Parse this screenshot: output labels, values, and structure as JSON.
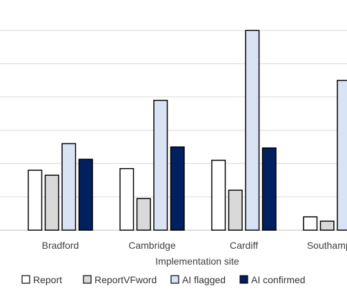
{
  "chart_data": {
    "type": "bar",
    "xlabel": "Implementation site",
    "ylabel": "",
    "categories": [
      "Bradford",
      "Cambridge",
      "Cardiff",
      "Southampton"
    ],
    "series": [
      {
        "name": "Report",
        "values": [
          18,
          18.5,
          21,
          4
        ],
        "color": "#ffffff"
      },
      {
        "name": "ReportVFword",
        "values": [
          16.5,
          9.5,
          12,
          2.7
        ],
        "color": "#d9d9d9"
      },
      {
        "name": "AI flagged",
        "values": [
          26,
          39,
          60,
          45
        ],
        "color": "#dae3f3"
      },
      {
        "name": "AI confirmed",
        "values": [
          21.3,
          25,
          24.7,
          0
        ],
        "color": "#002060"
      }
    ],
    "ylim": [
      0,
      70
    ],
    "gridlines": [
      0,
      10,
      20,
      30,
      40,
      50,
      60
    ],
    "grid": true,
    "legend_position": "bottom",
    "bar_outline": "#000000"
  }
}
